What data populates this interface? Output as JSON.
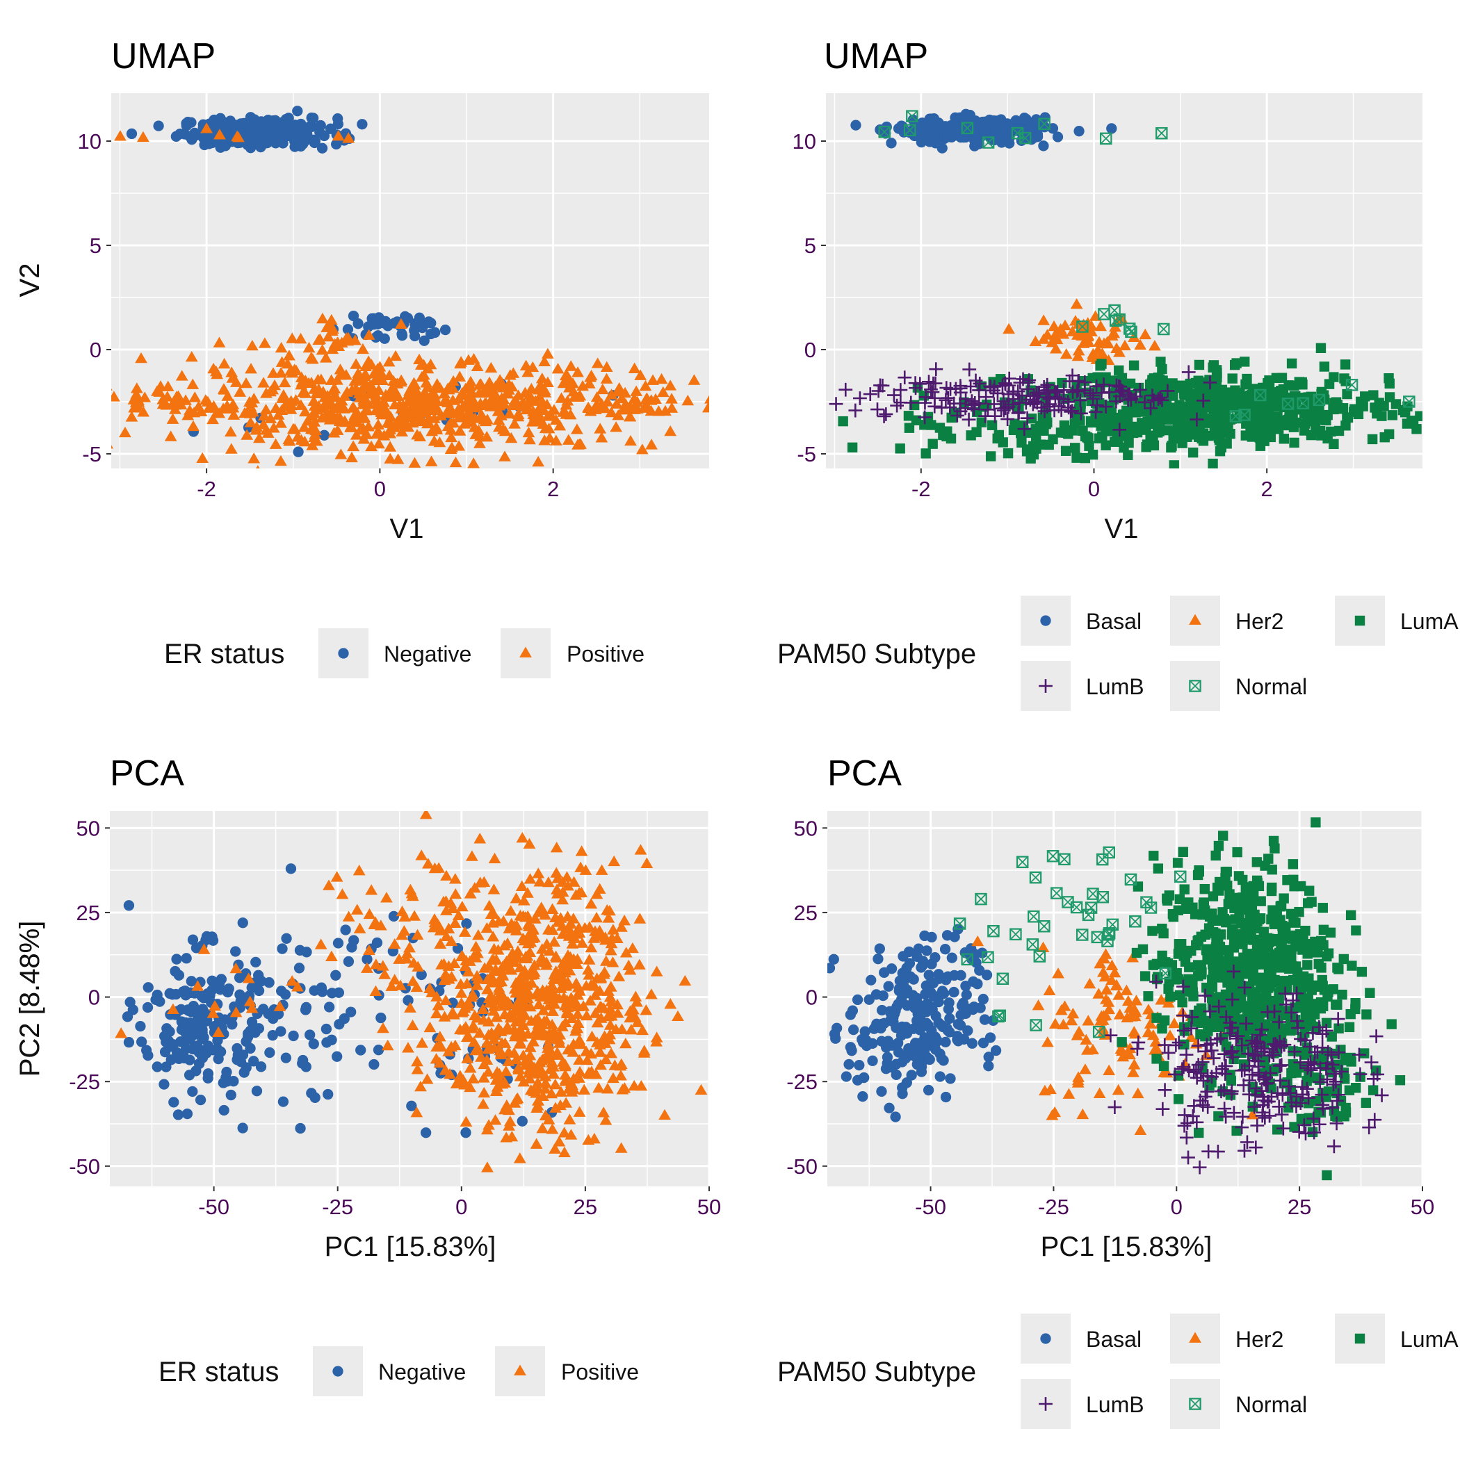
{
  "colors": {
    "negative": "#2b62a8",
    "positive": "#f2730f",
    "basal": "#2b62a8",
    "her2": "#f2730f",
    "luma": "#0a8043",
    "lumb": "#4e1a6e",
    "normal": "#1f9a6a",
    "panel_bg": "#ebebeb",
    "grid": "#ffffff",
    "tick_text": "#4b0a57"
  },
  "chart_data": [
    {
      "id": "umap_er",
      "type": "scatter",
      "title": "UMAP",
      "xlabel": "V1",
      "ylabel": "V2",
      "xlim": [
        -3.1,
        3.8
      ],
      "ylim": [
        -5.7,
        12.3
      ],
      "xticks": [
        -2,
        0,
        2
      ],
      "yticks": [
        -5,
        0,
        5,
        10
      ],
      "legend_title": "ER status",
      "legend_position": "bottom",
      "series": [
        {
          "name": "Negative",
          "key": "negative",
          "shape": "circle",
          "clusters": [
            {
              "cx": -1.4,
              "cy": 10.4,
              "sx": 0.45,
              "sy": 0.35,
              "n": 220
            },
            {
              "cx": 0.05,
              "cy": 1.1,
              "sx": 0.3,
              "sy": 0.35,
              "n": 40
            },
            {
              "cx": 0.3,
              "cy": -3.0,
              "sx": 1.2,
              "sy": 0.8,
              "n": 18
            }
          ]
        },
        {
          "name": "Positive",
          "key": "positive",
          "shape": "triangle",
          "clusters": [
            {
              "cx": 0.3,
              "cy": -2.7,
              "sx": 1.45,
              "sy": 1.05,
              "n": 650
            },
            {
              "cx": -2.4,
              "cy": -2.5,
              "sx": 0.25,
              "sy": 0.3,
              "n": 25
            },
            {
              "cx": 3.0,
              "cy": -2.6,
              "sx": 0.2,
              "sy": 0.3,
              "n": 25
            },
            {
              "cx": -0.5,
              "cy": 0.5,
              "sx": 0.3,
              "sy": 0.4,
              "n": 25
            },
            {
              "cx": -1.6,
              "cy": 10.3,
              "sx": 0.8,
              "sy": 0.25,
              "n": 10
            }
          ]
        }
      ]
    },
    {
      "id": "umap_pam50",
      "type": "scatter",
      "title": "UMAP",
      "xlabel": "V1",
      "ylabel": "V2",
      "xlim": [
        -3.1,
        3.8
      ],
      "ylim": [
        -5.7,
        12.3
      ],
      "xticks": [
        -2,
        0,
        2
      ],
      "yticks": [
        -5,
        0,
        5,
        10
      ],
      "legend_title": "PAM50 Subtype",
      "legend_position": "bottom",
      "series": [
        {
          "name": "Basal",
          "key": "basal",
          "shape": "circle",
          "clusters": [
            {
              "cx": -1.4,
              "cy": 10.5,
              "sx": 0.45,
              "sy": 0.3,
              "n": 230
            }
          ]
        },
        {
          "name": "Her2",
          "key": "her2",
          "shape": "triangle",
          "clusters": [
            {
              "cx": -0.1,
              "cy": 0.6,
              "sx": 0.35,
              "sy": 0.55,
              "n": 60
            }
          ]
        },
        {
          "name": "LumA",
          "key": "luma",
          "shape": "square",
          "clusters": [
            {
              "cx": 1.3,
              "cy": -2.9,
              "sx": 1.1,
              "sy": 0.9,
              "n": 600
            },
            {
              "cx": -1.0,
              "cy": -3.8,
              "sx": 0.7,
              "sy": 0.7,
              "n": 60
            }
          ]
        },
        {
          "name": "LumB",
          "key": "lumb",
          "shape": "plus",
          "clusters": [
            {
              "cx": -1.3,
              "cy": -2.3,
              "sx": 0.8,
              "sy": 0.6,
              "n": 140
            },
            {
              "cx": 0.5,
              "cy": -2.2,
              "sx": 0.6,
              "sy": 0.6,
              "n": 40
            }
          ]
        },
        {
          "name": "Normal",
          "key": "normal",
          "shape": "boxx",
          "clusters": [
            {
              "cx": -1.0,
              "cy": 10.3,
              "sx": 0.7,
              "sy": 0.3,
              "n": 10
            },
            {
              "cx": 0.4,
              "cy": 1.1,
              "sx": 0.25,
              "sy": 0.3,
              "n": 8
            },
            {
              "cx": 2.5,
              "cy": -2.6,
              "sx": 0.6,
              "sy": 0.4,
              "n": 8
            }
          ]
        }
      ]
    },
    {
      "id": "pca_er",
      "type": "scatter",
      "title": "PCA",
      "xlabel": "PC1 [15.83%]",
      "ylabel": "PC2 [8.48%]",
      "xlim": [
        -71,
        50
      ],
      "ylim": [
        -56,
        55
      ],
      "xticks": [
        -50,
        -25,
        0,
        25,
        50
      ],
      "yticks": [
        -50,
        -25,
        0,
        25,
        50
      ],
      "legend_title": "ER status",
      "legend_position": "bottom",
      "series": [
        {
          "name": "Negative",
          "key": "negative",
          "shape": "circle",
          "clusters": [
            {
              "cx": -53,
              "cy": -8,
              "sx": 6,
              "sy": 11,
              "n": 180
            },
            {
              "cx": -30,
              "cy": -3,
              "sx": 11,
              "sy": 16,
              "n": 80
            },
            {
              "cx": 2,
              "cy": -7,
              "sx": 7,
              "sy": 12,
              "n": 40
            }
          ]
        },
        {
          "name": "Positive",
          "key": "positive",
          "shape": "triangle",
          "clusters": [
            {
              "cx": 15,
              "cy": -2,
              "sx": 11,
              "sy": 19,
              "n": 700
            },
            {
              "cx": -12,
              "cy": 20,
              "sx": 8,
              "sy": 14,
              "n": 50
            },
            {
              "cx": -50,
              "cy": -10,
              "sx": 8,
              "sy": 12,
              "n": 15
            }
          ]
        }
      ]
    },
    {
      "id": "pca_pam50",
      "type": "scatter",
      "title": "PCA",
      "xlabel": "PC1 [15.83%]",
      "ylabel": "PC2 [8.48%]",
      "xlim": [
        -71,
        50
      ],
      "ylim": [
        -56,
        55
      ],
      "xticks": [
        -50,
        -25,
        0,
        25,
        50
      ],
      "yticks": [
        -50,
        -25,
        0,
        25,
        50
      ],
      "legend_title": "PAM50 Subtype",
      "legend_position": "bottom",
      "series": [
        {
          "name": "Basal",
          "key": "basal",
          "shape": "circle",
          "clusters": [
            {
              "cx": -55,
              "cy": -9,
              "sx": 6,
              "sy": 11,
              "n": 190
            },
            {
              "cx": -45,
              "cy": 5,
              "sx": 6,
              "sy": 12,
              "n": 50
            }
          ]
        },
        {
          "name": "Her2",
          "key": "her2",
          "shape": "triangle",
          "clusters": [
            {
              "cx": -10,
              "cy": -9,
              "sx": 9,
              "sy": 12,
              "n": 110
            }
          ]
        },
        {
          "name": "LumA",
          "key": "luma",
          "shape": "square",
          "clusters": [
            {
              "cx": 14,
              "cy": 8,
              "sx": 9,
              "sy": 16,
              "n": 600
            },
            {
              "cx": 30,
              "cy": -22,
              "sx": 6,
              "sy": 10,
              "n": 80
            }
          ]
        },
        {
          "name": "LumB",
          "key": "lumb",
          "shape": "plus",
          "clusters": [
            {
              "cx": 16,
              "cy": -22,
              "sx": 10,
              "sy": 12,
              "n": 230
            }
          ]
        },
        {
          "name": "Normal",
          "key": "normal",
          "shape": "boxx",
          "clusters": [
            {
              "cx": -20,
              "cy": 25,
              "sx": 12,
              "sy": 13,
              "n": 40
            }
          ]
        }
      ]
    }
  ]
}
